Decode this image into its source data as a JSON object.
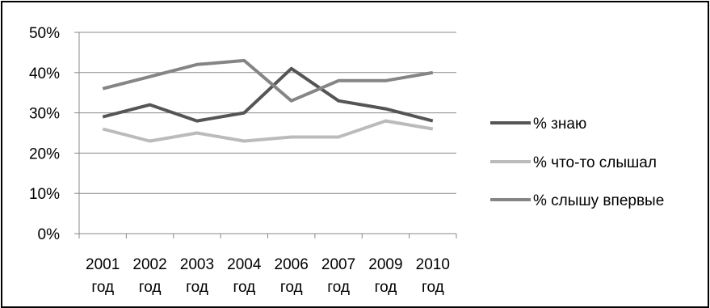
{
  "chart_data": {
    "type": "line",
    "categories": [
      "2001 год",
      "2002 год",
      "2003 год",
      "2004 год",
      "2006 год",
      "2007 год",
      "2009 год",
      "2010 год"
    ],
    "category_lines": [
      [
        "2001",
        "год"
      ],
      [
        "2002",
        "год"
      ],
      [
        "2003",
        "год"
      ],
      [
        "2004",
        "год"
      ],
      [
        "2006",
        "год"
      ],
      [
        "2007",
        "год"
      ],
      [
        "2009",
        "год"
      ],
      [
        "2010",
        "год"
      ]
    ],
    "series": [
      {
        "name": "% знаю",
        "color": "#555555",
        "values": [
          29,
          32,
          28,
          30,
          41,
          33,
          31,
          28
        ]
      },
      {
        "name": "% что-то слышал",
        "color": "#BBBBBB",
        "values": [
          26,
          23,
          25,
          23,
          24,
          24,
          28,
          26
        ]
      },
      {
        "name": "% слышу впервые",
        "color": "#858585",
        "values": [
          36,
          39,
          42,
          43,
          33,
          38,
          38,
          40
        ]
      }
    ],
    "y_ticks": [
      "0%",
      "10%",
      "20%",
      "30%",
      "40%",
      "50%"
    ],
    "ylim": [
      0,
      50
    ],
    "y_step": 10,
    "grid": true,
    "legend": "right"
  }
}
